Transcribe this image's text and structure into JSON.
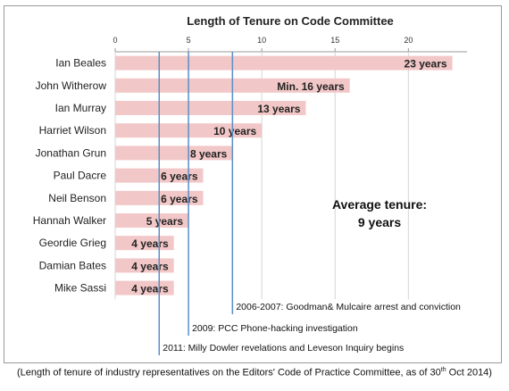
{
  "chart_data": {
    "type": "bar",
    "orientation": "horizontal",
    "title": "Length of Tenure on Code Committee",
    "xlim": [
      0,
      24
    ],
    "xticks": [
      0,
      5,
      10,
      15,
      20
    ],
    "categories": [
      "Ian Beales",
      "John Witherow",
      "Ian Murray",
      "Harriet Wilson",
      "Jonathan Grun",
      "Paul Dacre",
      "Neil Benson",
      "Hannah Walker",
      "Geordie Grieg",
      "Damian Bates",
      "Mike Sassi"
    ],
    "values": [
      23,
      16,
      13,
      10,
      8,
      6,
      6,
      5,
      4,
      4,
      4
    ],
    "data_labels": [
      "23 years",
      "Min. 16 years",
      "13 years",
      "10 years",
      "8 years",
      "6 years",
      "6 years",
      "5 years",
      "4 years",
      "4 years",
      "4 years"
    ],
    "bar_color": "#f2c7c7",
    "grid": true,
    "reference_lines": [
      {
        "x": 8,
        "label": "2006-2007: Goodman& Mulcaire arrest and conviction"
      },
      {
        "x": 5,
        "label": "2009: PCC Phone-hacking investigation"
      },
      {
        "x": 3,
        "label": "2011: Milly Dowler revelations and Leveson Inquiry begins"
      }
    ],
    "reference_line_color": "#5b8fc9",
    "annotation": {
      "line1": "Average tenure:",
      "line2": "9 years"
    }
  },
  "caption": {
    "before": "(Length of tenure of industry representatives on the Editors' Code of Practice Committee, as of 30",
    "sup": "th",
    "after": " Oct 2014)"
  }
}
